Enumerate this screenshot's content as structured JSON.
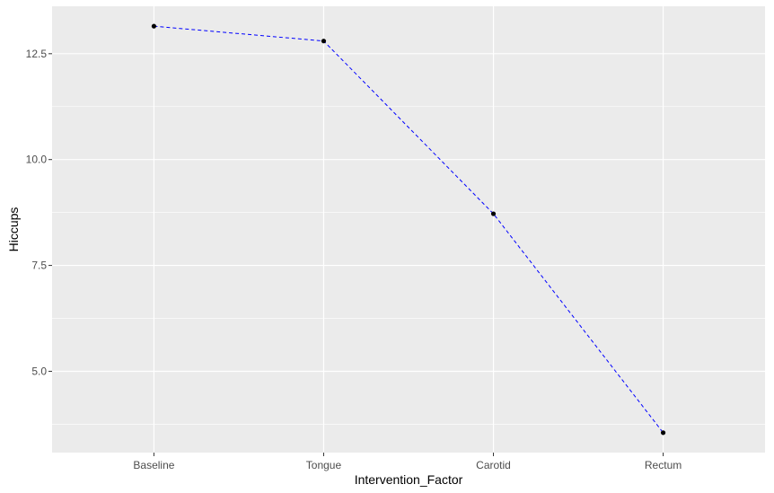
{
  "chart_data": {
    "type": "line",
    "title": "",
    "xlabel": "Intervention_Factor",
    "ylabel": "Hiccups",
    "categories": [
      "Baseline",
      "Tongue",
      "Carotid",
      "Rectum"
    ],
    "series": [
      {
        "values": [
          13.15,
          12.8,
          8.72,
          3.55
        ]
      }
    ],
    "yticks": [
      5.0,
      7.5,
      10.0,
      12.5
    ],
    "ytick_labels": [
      "5.0",
      "7.5",
      "10.0",
      "12.5"
    ],
    "ylim": [
      3.08,
      13.62
    ],
    "grid": true,
    "line_style": "dashed",
    "colors": {
      "panel_background": "#ebebeb",
      "grid": "#ffffff",
      "line": "#0000ff",
      "point": "#000000"
    }
  }
}
